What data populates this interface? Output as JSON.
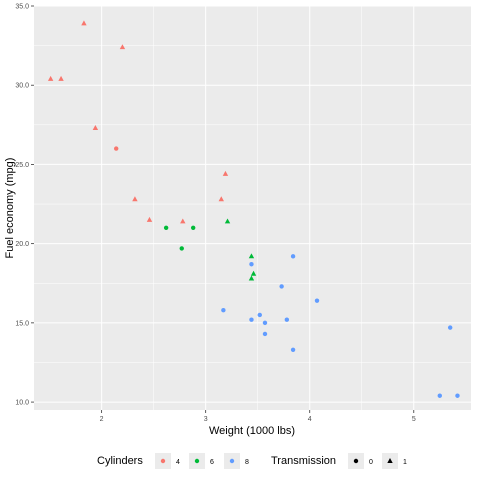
{
  "chart_data": {
    "type": "scatter",
    "xlabel": "Weight (1000 lbs)",
    "ylabel": "Fuel economy (mpg)",
    "xlim": [
      1.35,
      5.55
    ],
    "ylim": [
      9.5,
      35.0
    ],
    "x_ticks": [
      2,
      3,
      4,
      5
    ],
    "y_ticks": [
      10.0,
      15.0,
      20.0,
      25.0,
      30.0,
      35.0
    ],
    "x_tick_labels": [
      "2",
      "3",
      "4",
      "5"
    ],
    "y_tick_labels": [
      "10.0",
      "15.0",
      "20.0",
      "25.0",
      "30.0",
      "35.0"
    ],
    "grid": true,
    "background": "#ebebeb",
    "legend": {
      "placement": "bottom",
      "color_title": "Cylinders",
      "color_entries": [
        {
          "label": "4",
          "color": "#f8766d"
        },
        {
          "label": "6",
          "color": "#00ba38"
        },
        {
          "label": "8",
          "color": "#619cff"
        }
      ],
      "shape_title": "Transmission",
      "shape_entries": [
        {
          "label": "0",
          "shape": "circle"
        },
        {
          "label": "1",
          "shape": "triangle"
        }
      ]
    },
    "points": [
      {
        "x": 1.51,
        "y": 30.4,
        "cyl": "4",
        "am": "1"
      },
      {
        "x": 1.61,
        "y": 30.4,
        "cyl": "4",
        "am": "1"
      },
      {
        "x": 1.83,
        "y": 33.9,
        "cyl": "4",
        "am": "1"
      },
      {
        "x": 1.94,
        "y": 27.3,
        "cyl": "4",
        "am": "1"
      },
      {
        "x": 2.14,
        "y": 26.0,
        "cyl": "4",
        "am": "0"
      },
      {
        "x": 2.2,
        "y": 32.4,
        "cyl": "4",
        "am": "1"
      },
      {
        "x": 2.32,
        "y": 22.8,
        "cyl": "4",
        "am": "1"
      },
      {
        "x": 2.46,
        "y": 21.5,
        "cyl": "4",
        "am": "1"
      },
      {
        "x": 2.78,
        "y": 21.4,
        "cyl": "4",
        "am": "1"
      },
      {
        "x": 3.15,
        "y": 22.8,
        "cyl": "4",
        "am": "1"
      },
      {
        "x": 3.19,
        "y": 24.4,
        "cyl": "4",
        "am": "1"
      },
      {
        "x": 2.62,
        "y": 21.0,
        "cyl": "6",
        "am": "0"
      },
      {
        "x": 2.77,
        "y": 19.7,
        "cyl": "6",
        "am": "0"
      },
      {
        "x": 2.88,
        "y": 21.0,
        "cyl": "6",
        "am": "0"
      },
      {
        "x": 3.21,
        "y": 21.4,
        "cyl": "6",
        "am": "1"
      },
      {
        "x": 3.44,
        "y": 19.2,
        "cyl": "6",
        "am": "1"
      },
      {
        "x": 3.44,
        "y": 17.8,
        "cyl": "6",
        "am": "1"
      },
      {
        "x": 3.46,
        "y": 18.1,
        "cyl": "6",
        "am": "1"
      },
      {
        "x": 3.17,
        "y": 15.8,
        "cyl": "8",
        "am": "0"
      },
      {
        "x": 3.44,
        "y": 18.7,
        "cyl": "8",
        "am": "0"
      },
      {
        "x": 3.44,
        "y": 15.2,
        "cyl": "8",
        "am": "0"
      },
      {
        "x": 3.52,
        "y": 15.5,
        "cyl": "8",
        "am": "0"
      },
      {
        "x": 3.57,
        "y": 15.0,
        "cyl": "8",
        "am": "0"
      },
      {
        "x": 3.57,
        "y": 14.3,
        "cyl": "8",
        "am": "0"
      },
      {
        "x": 3.73,
        "y": 17.3,
        "cyl": "8",
        "am": "0"
      },
      {
        "x": 3.78,
        "y": 15.2,
        "cyl": "8",
        "am": "0"
      },
      {
        "x": 3.84,
        "y": 19.2,
        "cyl": "8",
        "am": "0"
      },
      {
        "x": 3.84,
        "y": 13.3,
        "cyl": "8",
        "am": "0"
      },
      {
        "x": 4.07,
        "y": 16.4,
        "cyl": "8",
        "am": "0"
      },
      {
        "x": 5.25,
        "y": 10.4,
        "cyl": "8",
        "am": "0"
      },
      {
        "x": 5.42,
        "y": 10.4,
        "cyl": "8",
        "am": "0"
      },
      {
        "x": 5.35,
        "y": 14.7,
        "cyl": "8",
        "am": "0"
      }
    ]
  }
}
